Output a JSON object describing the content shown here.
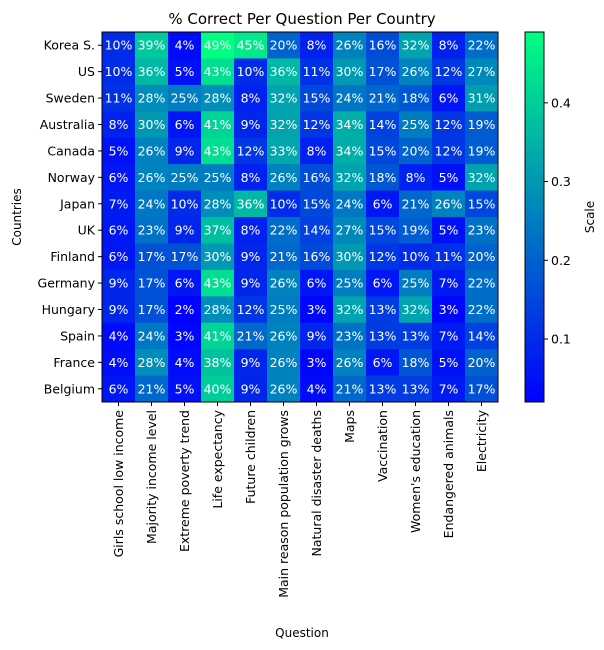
{
  "chart_data": {
    "type": "heatmap",
    "title": "% Correct Per Question Per Country",
    "xlabel": "Question",
    "ylabel": "Countries",
    "colorbar_label": "Scale",
    "colorbar_ticks": [
      "0.1",
      "0.2",
      "0.3",
      "0.4"
    ],
    "colorbar_range": [
      0.02,
      0.49
    ],
    "colormap": [
      "#0000ff",
      "#00ff80"
    ],
    "cell_text_color": "#ffffff",
    "columns": [
      "Girls school low income",
      "Majority income level",
      "Extreme poverty trend",
      "Life expectancy",
      "Future children",
      "Main reason population grows",
      "Natural disaster deaths",
      "Maps",
      "Vaccination",
      "Women's education",
      "Endangered animals",
      "Electricity"
    ],
    "rows": [
      "Korea S.",
      "US",
      "Sweden",
      "Australia",
      "Canada",
      "Norway",
      "Japan",
      "UK",
      "Finland",
      "Germany",
      "Hungary",
      "Spain",
      "France",
      "Belgium"
    ],
    "values": [
      [
        10,
        39,
        4,
        49,
        45,
        20,
        8,
        26,
        16,
        32,
        8,
        22
      ],
      [
        10,
        36,
        5,
        43,
        10,
        36,
        11,
        30,
        17,
        26,
        12,
        27
      ],
      [
        11,
        28,
        25,
        28,
        8,
        32,
        15,
        24,
        21,
        18,
        6,
        31
      ],
      [
        8,
        30,
        6,
        41,
        9,
        32,
        12,
        34,
        14,
        25,
        12,
        19
      ],
      [
        5,
        26,
        9,
        43,
        12,
        33,
        8,
        34,
        15,
        20,
        12,
        19
      ],
      [
        6,
        26,
        25,
        25,
        8,
        26,
        16,
        32,
        18,
        8,
        5,
        32
      ],
      [
        7,
        24,
        10,
        28,
        36,
        10,
        15,
        24,
        6,
        21,
        26,
        15
      ],
      [
        6,
        23,
        9,
        37,
        8,
        22,
        14,
        27,
        15,
        19,
        5,
        23
      ],
      [
        6,
        17,
        17,
        30,
        9,
        21,
        16,
        30,
        12,
        10,
        11,
        20
      ],
      [
        9,
        17,
        6,
        43,
        9,
        26,
        6,
        25,
        6,
        25,
        7,
        22
      ],
      [
        9,
        17,
        2,
        28,
        12,
        25,
        3,
        32,
        13,
        32,
        3,
        22
      ],
      [
        4,
        24,
        3,
        41,
        21,
        26,
        9,
        23,
        13,
        13,
        7,
        14
      ],
      [
        4,
        28,
        4,
        38,
        9,
        26,
        3,
        26,
        6,
        18,
        5,
        20
      ],
      [
        6,
        21,
        5,
        40,
        9,
        26,
        4,
        21,
        13,
        13,
        7,
        17
      ]
    ],
    "value_format": "percent"
  }
}
